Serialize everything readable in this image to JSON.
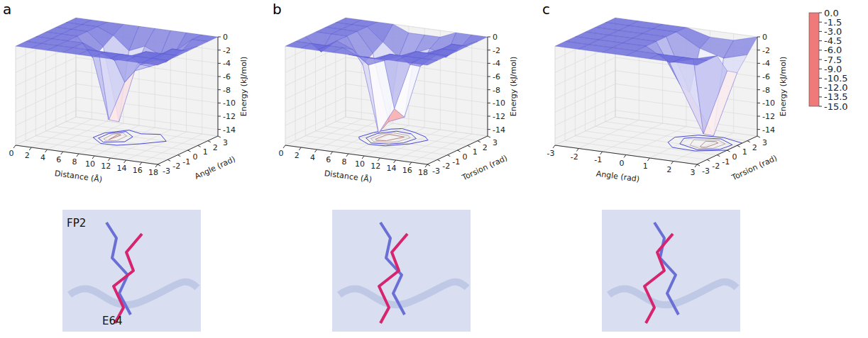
{
  "chart_data": [
    {
      "type": "surface",
      "panel": "a",
      "xlabel": "Distance (Å)",
      "ylabel": "Angle (rad)",
      "zlabel": "Energy (kJ/mol)",
      "x": [
        0,
        2,
        4,
        6,
        8,
        10,
        12,
        14,
        16,
        18
      ],
      "y": [
        -3,
        -2,
        -1,
        0,
        1,
        2,
        3
      ],
      "z": [
        [
          0,
          0,
          0,
          0,
          0,
          0,
          0,
          0,
          0,
          0
        ],
        [
          0,
          0,
          0,
          0,
          0,
          0,
          0,
          0,
          0,
          0
        ],
        [
          0,
          0,
          0,
          0,
          -1,
          -2,
          -1,
          0,
          0,
          0
        ],
        [
          0,
          0,
          0,
          -3,
          -12,
          -6,
          -3,
          -2,
          0,
          0
        ],
        [
          0,
          0,
          0,
          -2,
          -13,
          -5,
          -4,
          -3,
          -1,
          0
        ],
        [
          0,
          0,
          0,
          -1,
          -3,
          -2,
          -3,
          -2,
          0,
          0
        ],
        [
          0,
          0,
          0,
          0,
          0,
          0,
          0,
          0,
          0,
          0
        ]
      ],
      "xlim": [
        0,
        18
      ],
      "xticks": [
        0,
        2,
        4,
        6,
        8,
        10,
        12,
        14,
        16,
        18
      ],
      "ylim": [
        -3,
        3
      ],
      "yticks": [
        -3,
        -2,
        -1,
        0,
        1,
        2,
        3
      ],
      "zlim": [
        -15,
        0
      ],
      "zticks": [
        -14,
        -12,
        -10,
        -8,
        -6,
        -4,
        -2,
        0
      ],
      "grid": true,
      "annotations": [
        "FP2",
        "E64"
      ]
    },
    {
      "type": "surface",
      "panel": "b",
      "xlabel": "Distance (Å)",
      "ylabel": "Torsion (rad)",
      "zlabel": "Energy (kJ/mol)",
      "x": [
        0,
        2,
        4,
        6,
        8,
        10,
        12,
        14,
        16,
        18
      ],
      "y": [
        -3,
        -2,
        -1,
        0,
        1,
        2,
        3
      ],
      "z": [
        [
          0,
          0,
          0,
          0,
          0,
          0,
          0,
          0,
          0,
          0
        ],
        [
          0,
          0,
          0,
          0,
          -1,
          -1,
          0,
          0,
          0,
          0
        ],
        [
          0,
          -2,
          0,
          -1,
          -3,
          -2,
          -1,
          0,
          0,
          0
        ],
        [
          0,
          0,
          0,
          -4,
          -14,
          -10,
          -3,
          -1,
          0,
          0
        ],
        [
          0,
          0,
          0,
          -3,
          -13,
          -12,
          -4,
          -2,
          0,
          0
        ],
        [
          0,
          0,
          0,
          -2,
          -4,
          -3,
          -2,
          -3,
          -1,
          0
        ],
        [
          0,
          0,
          0,
          0,
          -1,
          -1,
          -1,
          0,
          0,
          0
        ]
      ],
      "xlim": [
        0,
        18
      ],
      "xticks": [
        0,
        2,
        4,
        6,
        8,
        10,
        12,
        14,
        16,
        18
      ],
      "ylim": [
        -3,
        3
      ],
      "yticks": [
        -3,
        -2,
        -1,
        0,
        1,
        2,
        3
      ],
      "zlim": [
        -15,
        0
      ],
      "zticks": [
        -14,
        -12,
        -10,
        -8,
        -6,
        -4,
        -2,
        0
      ],
      "grid": true
    },
    {
      "type": "surface",
      "panel": "c",
      "xlabel": "Angle (rad)",
      "ylabel": "Torsion (rad)",
      "zlabel": "Energy (kJ/mol)",
      "x": [
        -3,
        -2,
        -1,
        0,
        1,
        2,
        3
      ],
      "y": [
        -3,
        -2,
        -1,
        0,
        1,
        2,
        3
      ],
      "z": [
        [
          0,
          0,
          0,
          0,
          0,
          0,
          0
        ],
        [
          0,
          0,
          0,
          0,
          0,
          0,
          0
        ],
        [
          0,
          0,
          0,
          0,
          -2,
          -1,
          0
        ],
        [
          0,
          0,
          0,
          0,
          -6,
          -13,
          -3
        ],
        [
          0,
          0,
          0,
          0,
          -8,
          -14,
          -4
        ],
        [
          0,
          0,
          0,
          0,
          -2,
          -3,
          -2
        ],
        [
          0,
          0,
          0,
          0,
          -1,
          -1,
          0
        ]
      ],
      "xlim": [
        -3,
        3
      ],
      "xticks": [
        -3,
        -2,
        -1,
        0,
        1,
        2,
        3
      ],
      "ylim": [
        -3,
        3
      ],
      "yticks": [
        -3,
        -2,
        -1,
        0,
        1,
        2,
        3
      ],
      "zlim": [
        -15,
        0
      ],
      "zticks": [
        -14,
        -12,
        -10,
        -8,
        -6,
        -4,
        -2,
        0
      ],
      "grid": true
    }
  ],
  "colorbar": {
    "range": [
      -15,
      0
    ],
    "colors": [
      "#f07a7a",
      "#ffffff",
      "#6f6fdc"
    ],
    "ticks": [
      {
        "value": 0,
        "label": "0.0"
      },
      {
        "value": -1.5,
        "label": "-1.5"
      },
      {
        "value": -3,
        "label": "-3.0"
      },
      {
        "value": -4.5,
        "label": "-4.5"
      },
      {
        "value": -6,
        "label": "-6.0"
      },
      {
        "value": -7.5,
        "label": "-7.5"
      },
      {
        "value": -9,
        "label": "-9.0"
      },
      {
        "value": -10.5,
        "label": "-10.5"
      },
      {
        "value": -12,
        "label": "-12.0"
      },
      {
        "value": -13.5,
        "label": "-13.5"
      },
      {
        "value": -15,
        "label": "-15.0"
      }
    ]
  }
}
